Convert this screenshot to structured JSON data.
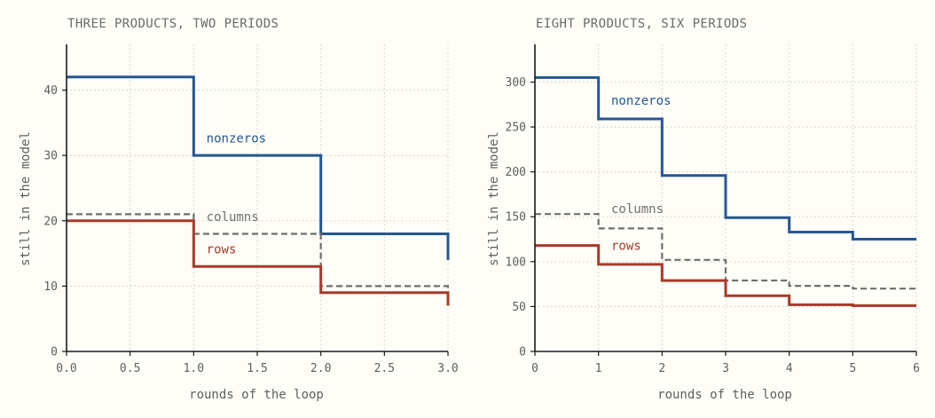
{
  "chart_data": [
    {
      "type": "line",
      "step": "post",
      "title": "THREE PRODUCTS, TWO PERIODS",
      "xlabel": "rounds of the loop",
      "ylabel": "still in the model",
      "xlim": [
        0,
        3
      ],
      "ylim": [
        0,
        47
      ],
      "xticks": [
        0,
        0.5,
        1,
        1.5,
        2,
        2.5,
        3
      ],
      "xtick_labels": [
        "0.0",
        "0.5",
        "1.0",
        "1.5",
        "2.0",
        "2.5",
        "3.0"
      ],
      "yticks": [
        0,
        10,
        20,
        30,
        40
      ],
      "ytick_labels": [
        "0",
        "10",
        "20",
        "30",
        "40"
      ],
      "grid": true,
      "series": [
        {
          "name": "nonzeros",
          "x": [
            0,
            1,
            2,
            3
          ],
          "y": [
            42,
            30,
            18,
            14
          ],
          "color": "#245694",
          "style": "solid",
          "label_at": [
            1.1,
            32
          ]
        },
        {
          "name": "columns",
          "x": [
            0,
            1,
            2,
            3
          ],
          "y": [
            21,
            18,
            10,
            8
          ],
          "color": "#6e6e6e",
          "style": "dashed",
          "label_at": [
            1.1,
            20
          ]
        },
        {
          "name": "rows",
          "x": [
            0,
            1,
            2,
            3
          ],
          "y": [
            20,
            13,
            9,
            7
          ],
          "color": "#a8392b",
          "style": "solid",
          "label_at": [
            1.1,
            15
          ]
        }
      ]
    },
    {
      "type": "line",
      "step": "post",
      "title": "EIGHT PRODUCTS, SIX PERIODS",
      "xlabel": "rounds of the loop",
      "ylabel": "still in the model",
      "xlim": [
        0,
        6
      ],
      "ylim": [
        0,
        342
      ],
      "xticks": [
        0,
        1,
        2,
        3,
        4,
        5,
        6
      ],
      "xtick_labels": [
        "0",
        "1",
        "2",
        "3",
        "4",
        "5",
        "6"
      ],
      "yticks": [
        0,
        50,
        100,
        150,
        200,
        250,
        300
      ],
      "ytick_labels": [
        "0",
        "50",
        "100",
        "150",
        "200",
        "250",
        "300"
      ],
      "grid": true,
      "series": [
        {
          "name": "nonzeros",
          "x": [
            0,
            1,
            2,
            3,
            4,
            5,
            6
          ],
          "y": [
            305,
            259,
            196,
            149,
            133,
            125,
            125
          ],
          "color": "#245694",
          "style": "solid",
          "label_at": [
            1.2,
            275
          ]
        },
        {
          "name": "columns",
          "x": [
            0,
            1,
            2,
            3,
            4,
            5,
            6
          ],
          "y": [
            153,
            137,
            102,
            79,
            73,
            70,
            70
          ],
          "color": "#6e6e6e",
          "style": "dashed",
          "label_at": [
            1.2,
            154
          ]
        },
        {
          "name": "rows",
          "x": [
            0,
            1,
            2,
            3,
            4,
            5,
            6
          ],
          "y": [
            118,
            97,
            79,
            62,
            52,
            51,
            51
          ],
          "color": "#a8392b",
          "style": "solid",
          "label_at": [
            1.2,
            113
          ]
        }
      ]
    }
  ]
}
